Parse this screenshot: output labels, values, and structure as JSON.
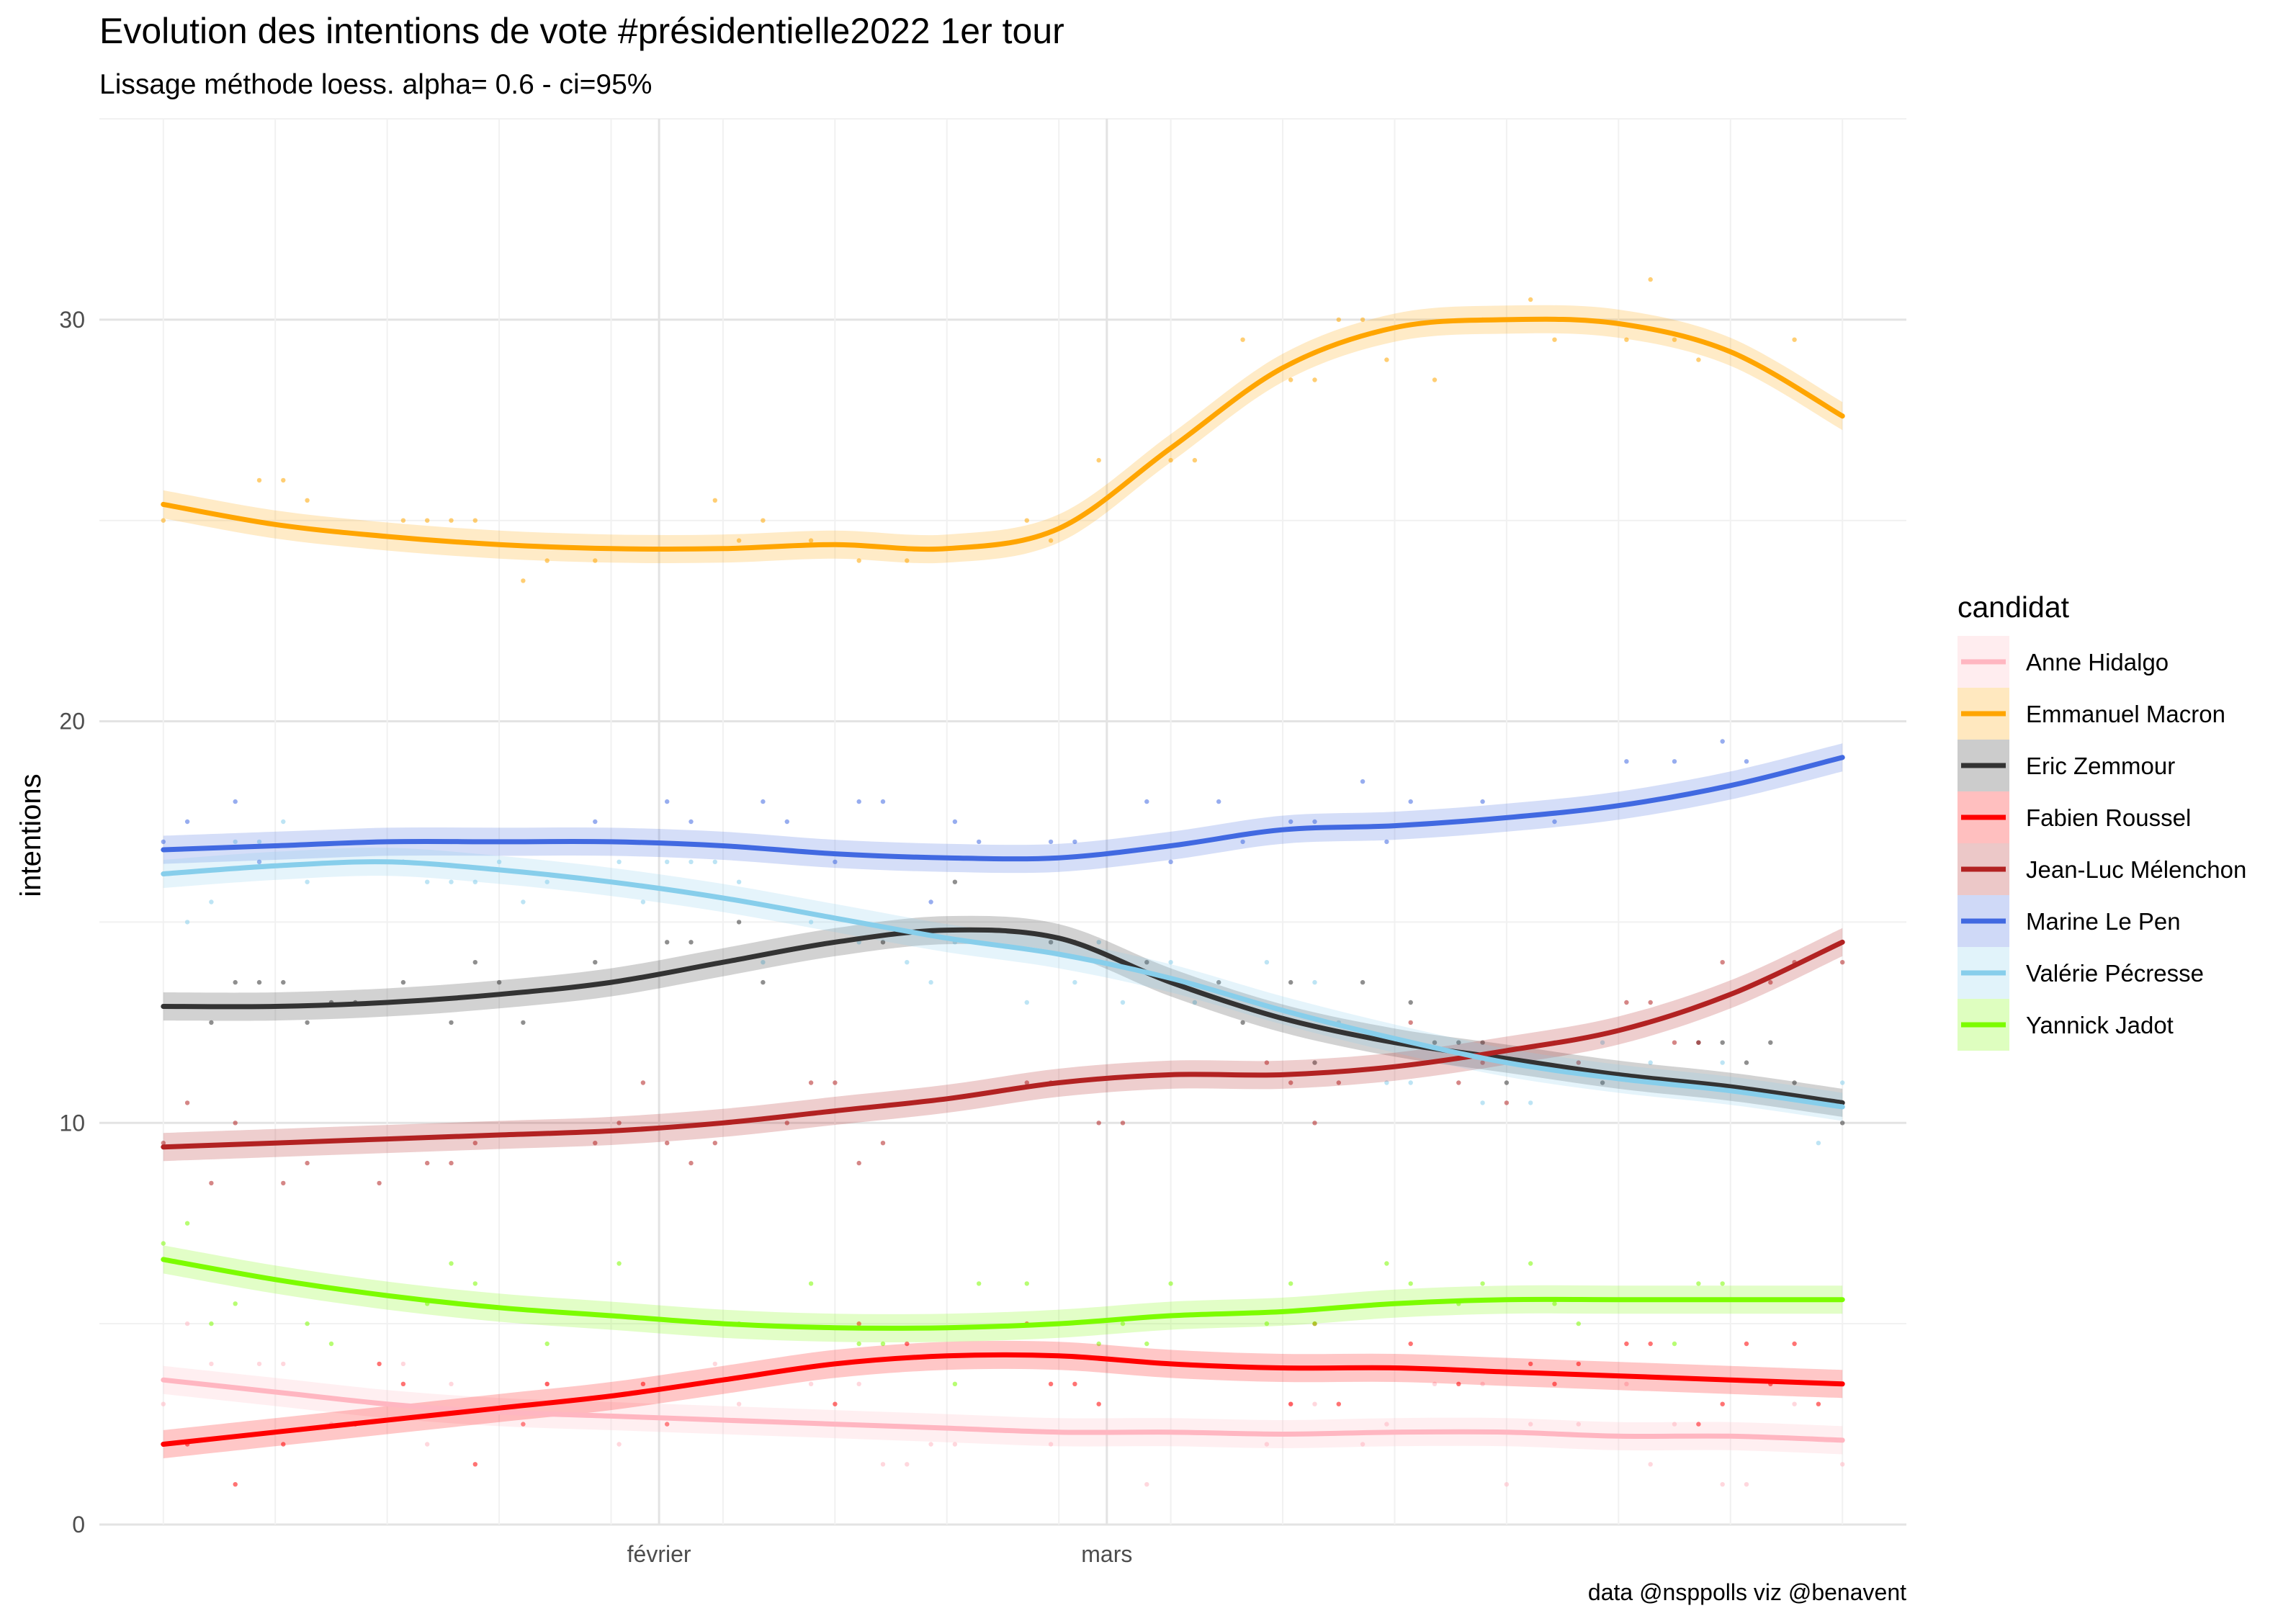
{
  "chart_data": {
    "type": "line",
    "title": "Evolution des intentions de vote #présidentielle2022 1er tour",
    "subtitle": "Lissage méthode loess. alpha= 0.6  - ci=95%",
    "xlabel": "",
    "ylabel": "intentions",
    "caption": "data @nsppolls viz @benavent",
    "x_start": "2022-01-01",
    "x_ticks": [
      {
        "date": "2022-02-01",
        "label": "février"
      },
      {
        "date": "2022-03-01",
        "label": "mars"
      }
    ],
    "xlim": [
      "2021-12-28",
      "2022-04-20"
    ],
    "ylim": [
      0,
      35
    ],
    "y_ticks": [
      0,
      10,
      20,
      30
    ],
    "grid": true,
    "smoothing": {
      "method": "loess",
      "alpha": 0.6,
      "ci": 0.95
    },
    "legend": {
      "title": "candidat",
      "position": "right"
    },
    "x": [
      "2022-01-01",
      "2022-01-08",
      "2022-01-15",
      "2022-01-22",
      "2022-01-29",
      "2022-02-05",
      "2022-02-12",
      "2022-02-19",
      "2022-02-26",
      "2022-03-05",
      "2022-03-12",
      "2022-03-19",
      "2022-03-26",
      "2022-04-02",
      "2022-04-09",
      "2022-04-16"
    ],
    "series": [
      {
        "name": "Anne Hidalgo",
        "color": "#FFB6C1",
        "values": [
          3.6,
          3.3,
          3.0,
          2.8,
          2.7,
          2.6,
          2.5,
          2.4,
          2.3,
          2.3,
          2.25,
          2.3,
          2.3,
          2.2,
          2.2,
          2.1
        ]
      },
      {
        "name": "Emmanuel Macron",
        "color": "#FFA500",
        "values": [
          25.4,
          24.9,
          24.6,
          24.4,
          24.3,
          24.3,
          24.4,
          24.3,
          24.8,
          26.8,
          28.8,
          29.8,
          30.0,
          29.9,
          29.2,
          27.6
        ]
      },
      {
        "name": "Eric Zemmour",
        "color": "#333333",
        "values": [
          12.9,
          12.9,
          13.0,
          13.2,
          13.5,
          14.0,
          14.5,
          14.8,
          14.6,
          13.5,
          12.6,
          12.0,
          11.6,
          11.2,
          10.9,
          10.5
        ]
      },
      {
        "name": "Fabien Roussel",
        "color": "#FF0000",
        "values": [
          2.0,
          2.3,
          2.6,
          2.9,
          3.2,
          3.6,
          4.0,
          4.2,
          4.2,
          4.0,
          3.9,
          3.9,
          3.8,
          3.7,
          3.6,
          3.5
        ]
      },
      {
        "name": "Jean-Luc Mélenchon",
        "color": "#B22222",
        "values": [
          9.4,
          9.5,
          9.6,
          9.7,
          9.8,
          10.0,
          10.3,
          10.6,
          11.0,
          11.2,
          11.2,
          11.4,
          11.8,
          12.3,
          13.2,
          14.5
        ]
      },
      {
        "name": "Marine Le Pen",
        "color": "#4169E1",
        "values": [
          16.8,
          16.9,
          17.0,
          17.0,
          17.0,
          16.9,
          16.7,
          16.6,
          16.6,
          16.9,
          17.3,
          17.4,
          17.6,
          17.9,
          18.4,
          19.1
        ]
      },
      {
        "name": "Valérie Pécresse",
        "color": "#87CEEB",
        "values": [
          16.2,
          16.4,
          16.5,
          16.3,
          16.0,
          15.6,
          15.1,
          14.6,
          14.2,
          13.6,
          12.8,
          12.1,
          11.5,
          11.1,
          10.8,
          10.4
        ]
      },
      {
        "name": "Yannick Jadot",
        "color": "#7CFC00",
        "values": [
          6.6,
          6.1,
          5.7,
          5.4,
          5.2,
          5.0,
          4.9,
          4.9,
          5.0,
          5.2,
          5.3,
          5.5,
          5.6,
          5.6,
          5.6,
          5.6
        ]
      }
    ]
  }
}
